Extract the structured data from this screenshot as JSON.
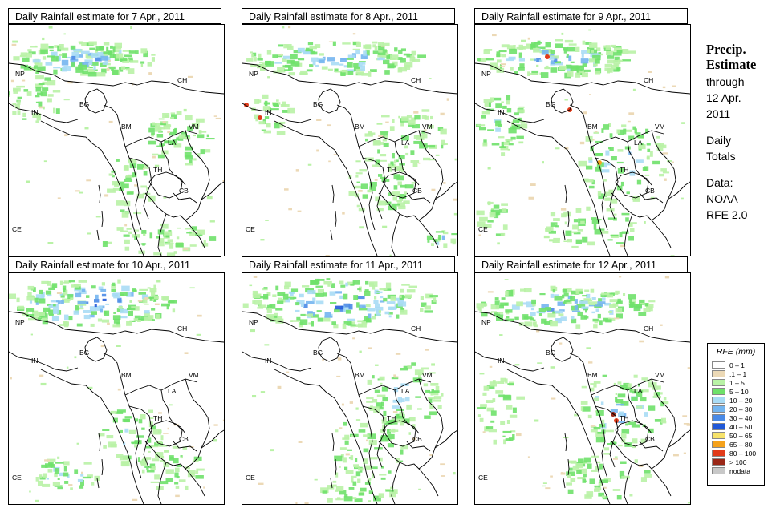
{
  "panels": [
    {
      "title": "Daily Rainfall estimate for  7 Apr., 2011",
      "day": 7
    },
    {
      "title": "Daily Rainfall estimate for  8 Apr., 2011",
      "day": 8
    },
    {
      "title": "Daily Rainfall estimate for  9 Apr., 2011",
      "day": 9
    },
    {
      "title": "Daily Rainfall estimate for  10 Apr., 2011",
      "day": 10
    },
    {
      "title": "Daily Rainfall estimate for  11 Apr., 2011",
      "day": 11
    },
    {
      "title": "Daily Rainfall estimate for  12 Apr., 2011",
      "day": 12
    }
  ],
  "countries": {
    "np": "NP",
    "ch": "CH",
    "in": "IN",
    "bg": "BG",
    "bm": "BM",
    "vm": "VM",
    "la": "LA",
    "th": "TH",
    "cb": "CB",
    "ce": "CE"
  },
  "side": {
    "title_line1": "Precip.",
    "title_line2": "Estimate",
    "through": "through",
    "date_line1": "12 Apr.",
    "date_line2": "2011",
    "totals_line1": "Daily",
    "totals_line2": "Totals",
    "data_line1": "Data:",
    "data_line2": "NOAA–",
    "data_line3": "RFE 2.0"
  },
  "legend": {
    "title": "RFE (mm)",
    "items": [
      {
        "label": "0 – 1",
        "color": "#ffffff"
      },
      {
        "label": ".1 – 1",
        "color": "#ecd9b6"
      },
      {
        "label": "1 – 5",
        "color": "#b9f2a6"
      },
      {
        "label": "5 – 10",
        "color": "#6fe16a"
      },
      {
        "label": "10 – 20",
        "color": "#a9dcf5"
      },
      {
        "label": "20 – 30",
        "color": "#74b5ef"
      },
      {
        "label": "30 – 40",
        "color": "#4a8ae6"
      },
      {
        "label": "40 – 50",
        "color": "#2159d8"
      },
      {
        "label": "50 – 65",
        "color": "#f7e36b"
      },
      {
        "label": "65 – 80",
        "color": "#f5a21c"
      },
      {
        "label": "80 – 100",
        "color": "#e13b1a"
      },
      {
        "label": "> 100",
        "color": "#9a2717"
      },
      {
        "label": "nodata",
        "color": "#c8c8c8"
      }
    ]
  }
}
